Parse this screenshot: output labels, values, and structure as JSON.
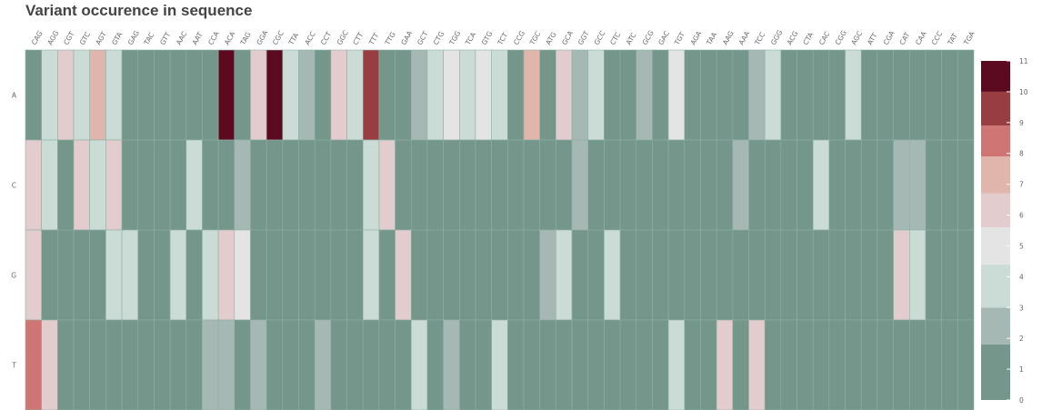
{
  "chart_data": {
    "type": "heatmap",
    "title": "Variant occurence in sequence",
    "xlabel": "",
    "ylabel": "",
    "x_categories": [
      "CAG",
      "AGG",
      "CGT",
      "GTC",
      "AGT",
      "GTA",
      "GAG",
      "TAC",
      "GTT",
      "AAC",
      "AAT",
      "CCA",
      "ACA",
      "TAG",
      "GGA",
      "CGC",
      "TTA",
      "ACC",
      "CCT",
      "GGC",
      "CTT",
      "TTT",
      "TTG",
      "GAA",
      "GCT",
      "CTG",
      "TGG",
      "TCA",
      "GTG",
      "TCT",
      "CCG",
      "TGC",
      "ATG",
      "GCA",
      "GGT",
      "GCC",
      "CTC",
      "ATC",
      "GCG",
      "GAC",
      "TGT",
      "AGA",
      "TAA",
      "AAG",
      "AAA",
      "TCC",
      "GGG",
      "ACG",
      "CTA",
      "CAC",
      "CGG",
      "AGC",
      "ATT",
      "CGA",
      "CAT",
      "CAA",
      "CCC",
      "TAT",
      "TGA"
    ],
    "y_categories": [
      "A",
      "C",
      "G",
      "T"
    ],
    "values": [
      [
        1,
        3,
        5,
        3,
        7,
        3,
        1,
        1,
        1,
        1,
        1,
        1,
        11,
        1,
        5,
        11,
        3,
        2,
        1,
        5,
        3,
        10,
        1,
        1,
        2,
        3,
        4,
        3,
        4,
        3,
        1,
        7,
        1,
        5,
        2,
        3,
        1,
        1,
        2,
        1,
        4,
        1,
        1,
        1,
        1,
        2,
        3,
        1,
        1,
        1,
        1,
        3,
        1,
        1,
        1,
        1,
        1,
        1,
        1
      ],
      [
        5,
        3,
        1,
        5,
        3,
        5,
        1,
        1,
        1,
        1,
        3,
        1,
        1,
        2,
        1,
        1,
        1,
        1,
        1,
        1,
        1,
        3,
        5,
        1,
        1,
        1,
        1,
        1,
        1,
        1,
        1,
        1,
        1,
        1,
        2,
        1,
        1,
        1,
        1,
        1,
        1,
        1,
        1,
        1,
        2,
        1,
        1,
        1,
        1,
        3,
        1,
        1,
        1,
        1,
        2,
        2,
        1,
        1,
        1
      ],
      [
        5,
        1,
        1,
        1,
        1,
        3,
        3,
        1,
        1,
        3,
        1,
        3,
        5,
        4,
        1,
        1,
        1,
        1,
        1,
        1,
        1,
        3,
        1,
        5,
        1,
        1,
        1,
        1,
        1,
        1,
        1,
        1,
        2,
        3,
        1,
        1,
        3,
        1,
        1,
        1,
        1,
        1,
        1,
        1,
        1,
        1,
        1,
        1,
        1,
        1,
        1,
        1,
        1,
        1,
        5,
        3,
        1,
        1,
        1
      ],
      [
        8,
        5,
        1,
        1,
        1,
        1,
        1,
        1,
        1,
        1,
        1,
        2,
        2,
        1,
        2,
        1,
        1,
        1,
        2,
        1,
        1,
        1,
        1,
        1,
        3,
        1,
        2,
        1,
        1,
        3,
        1,
        1,
        1,
        1,
        1,
        1,
        1,
        1,
        1,
        1,
        3,
        1,
        1,
        5,
        1,
        5,
        1,
        1,
        1,
        1,
        1,
        1,
        1,
        1,
        1,
        1,
        1,
        1,
        1
      ]
    ],
    "colorbar": {
      "min": 0,
      "max": 11,
      "ticks": [
        0,
        1,
        2,
        3,
        4,
        5,
        6,
        7,
        8,
        9,
        10,
        11
      ],
      "colors": [
        "#74968b",
        "#a5b8b4",
        "#cbdcd6",
        "#e5e4e4",
        "#e2ccce",
        "#e0b5ab",
        "#cf7674",
        "#983e42",
        "#5b0a20"
      ]
    }
  }
}
